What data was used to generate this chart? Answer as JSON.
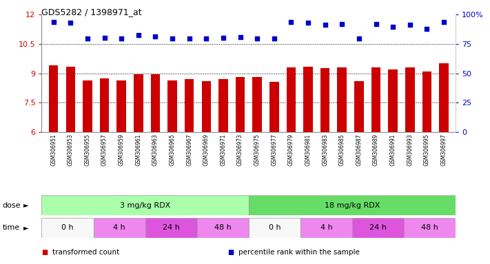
{
  "title": "GDS5282 / 1398971_at",
  "samples": [
    "GSM306951",
    "GSM306953",
    "GSM306955",
    "GSM306957",
    "GSM306959",
    "GSM306961",
    "GSM306963",
    "GSM306965",
    "GSM306967",
    "GSM306969",
    "GSM306971",
    "GSM306973",
    "GSM306975",
    "GSM306977",
    "GSM306979",
    "GSM306981",
    "GSM306983",
    "GSM306985",
    "GSM306987",
    "GSM306989",
    "GSM306991",
    "GSM306993",
    "GSM306995",
    "GSM306997"
  ],
  "bar_values": [
    9.4,
    9.35,
    8.65,
    8.75,
    8.65,
    8.95,
    8.95,
    8.65,
    8.7,
    8.6,
    8.7,
    8.8,
    8.8,
    8.55,
    9.3,
    9.35,
    9.25,
    9.3,
    8.6,
    9.3,
    9.2,
    9.3,
    9.1,
    9.5
  ],
  "scatter_values": [
    11.62,
    11.58,
    10.78,
    10.82,
    10.76,
    10.95,
    10.88,
    10.76,
    10.77,
    10.76,
    10.82,
    10.86,
    10.77,
    10.76,
    11.62,
    11.58,
    11.48,
    11.52,
    10.76,
    11.52,
    11.38,
    11.48,
    11.28,
    11.62
  ],
  "bar_color": "#cc0000",
  "scatter_color": "#0000cc",
  "ylim_left": [
    6.0,
    12.0
  ],
  "yticks_left": [
    6.0,
    7.5,
    9.0,
    10.5,
    12.0
  ],
  "ytick_labels_left": [
    "6",
    "7.5",
    "9",
    "10.5",
    "12"
  ],
  "ylim_right": [
    0,
    100
  ],
  "yticks_right": [
    0,
    25,
    50,
    75,
    100
  ],
  "ytick_labels_right": [
    "0",
    "25",
    "50",
    "75",
    "100%"
  ],
  "hlines": [
    7.5,
    9.0,
    10.5
  ],
  "dose_labels": [
    {
      "text": "3 mg/kg RDX",
      "start": 0,
      "end": 12,
      "color": "#aaffaa"
    },
    {
      "text": "18 mg/kg RDX",
      "start": 12,
      "end": 24,
      "color": "#66dd66"
    }
  ],
  "time_groups": [
    {
      "text": "0 h",
      "start": 0,
      "end": 3,
      "color": "#f8f8f8"
    },
    {
      "text": "4 h",
      "start": 3,
      "end": 6,
      "color": "#ee88ee"
    },
    {
      "text": "24 h",
      "start": 6,
      "end": 9,
      "color": "#dd55dd"
    },
    {
      "text": "48 h",
      "start": 9,
      "end": 12,
      "color": "#ee88ee"
    },
    {
      "text": "0 h",
      "start": 12,
      "end": 15,
      "color": "#f8f8f8"
    },
    {
      "text": "4 h",
      "start": 15,
      "end": 18,
      "color": "#ee88ee"
    },
    {
      "text": "24 h",
      "start": 18,
      "end": 21,
      "color": "#dd55dd"
    },
    {
      "text": "48 h",
      "start": 21,
      "end": 24,
      "color": "#ee88ee"
    }
  ],
  "legend_items": [
    {
      "label": "transformed count",
      "color": "#cc0000"
    },
    {
      "label": "percentile rank within the sample",
      "color": "#0000cc"
    }
  ],
  "bg_color": "#ffffff",
  "xticklabel_bg": "#e8e8e8"
}
